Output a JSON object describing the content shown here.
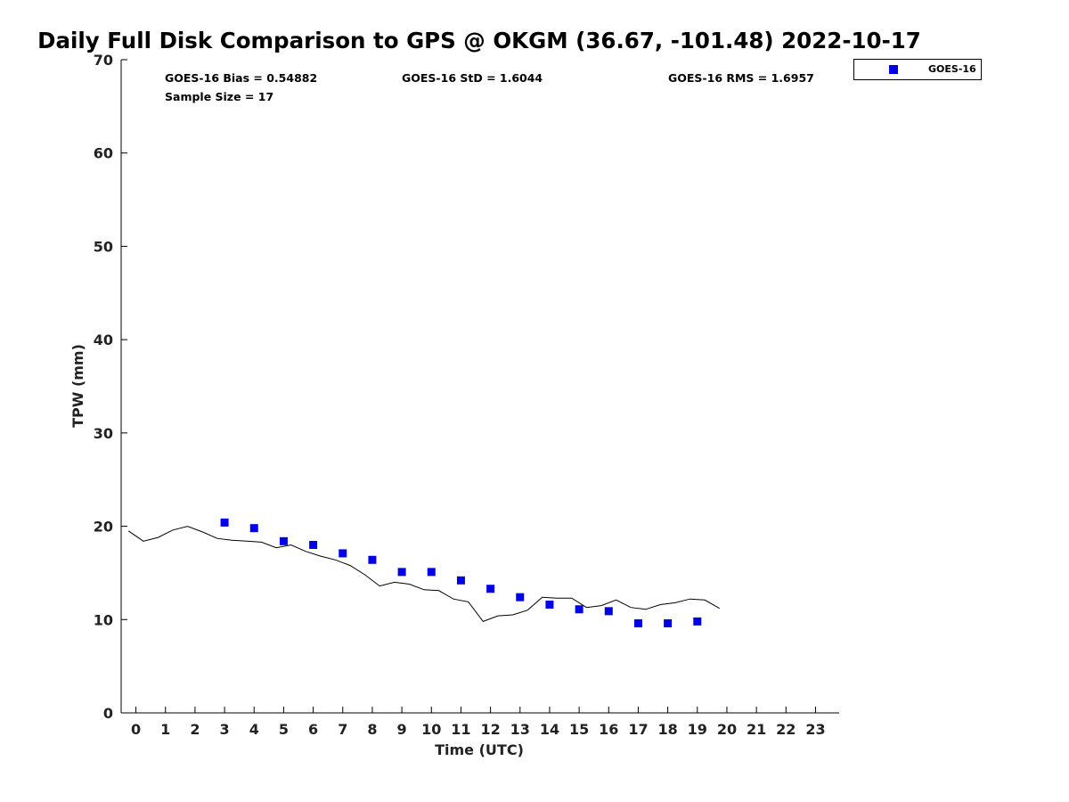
{
  "chart_data": {
    "type": "scatter",
    "title": "Daily Full Disk Comparison to GPS @ OKGM (36.67, -101.48) 2022-10-17",
    "xlabel": "Time (UTC)",
    "ylabel": "TPW (mm)",
    "xlim": [
      -0.5,
      23.8
    ],
    "ylim": [
      0,
      70
    ],
    "x_ticks": [
      "0",
      "1",
      "2",
      "3",
      "4",
      "5",
      "6",
      "7",
      "8",
      "9",
      "10",
      "11",
      "12",
      "13",
      "14",
      "15",
      "16",
      "17",
      "18",
      "19",
      "20",
      "21",
      "22",
      "23"
    ],
    "y_ticks": [
      "0",
      "10",
      "20",
      "30",
      "40",
      "50",
      "60",
      "70"
    ],
    "grid": false,
    "legend_position": "outside-top-right",
    "stats": {
      "bias": "GOES-16 Bias = 0.54882",
      "std": "GOES-16 StD = 1.6044",
      "rms": "GOES-16 RMS = 1.6957",
      "sample_size": "Sample Size = 17"
    },
    "series": [
      {
        "name": "GOES-16",
        "kind": "scatter",
        "color": "#0000e6",
        "marker": "square",
        "x": [
          3,
          4,
          5,
          6,
          7,
          8,
          9,
          10,
          11,
          12,
          13,
          14,
          15,
          16,
          17,
          18,
          19
        ],
        "y": [
          20.4,
          19.8,
          18.4,
          18.0,
          17.1,
          16.4,
          15.1,
          15.1,
          14.2,
          13.3,
          12.4,
          11.6,
          11.1,
          10.9,
          9.6,
          9.6,
          9.8
        ]
      },
      {
        "kind": "line",
        "color": "#000000",
        "x": [
          -0.25,
          0.25,
          0.75,
          1.25,
          1.75,
          2.25,
          2.75,
          3.25,
          3.75,
          4.25,
          4.75,
          5.25,
          5.75,
          6.25,
          6.75,
          7.25,
          7.75,
          8.25,
          8.75,
          9.25,
          9.75,
          10.25,
          10.75,
          11.25,
          11.75,
          12.25,
          12.75,
          13.25,
          13.75,
          14.25,
          14.75,
          15.25,
          15.75,
          16.25,
          16.75,
          17.25,
          17.75,
          18.25,
          18.75,
          19.25,
          19.75
        ],
        "y": [
          19.5,
          18.4,
          18.8,
          19.6,
          20.0,
          19.4,
          18.7,
          18.5,
          18.4,
          18.3,
          17.7,
          18.0,
          17.3,
          16.8,
          16.4,
          15.8,
          14.8,
          13.6,
          14.0,
          13.8,
          13.2,
          13.1,
          12.2,
          11.9,
          9.8,
          10.4,
          10.5,
          11.0,
          12.4,
          12.3,
          12.3,
          11.3,
          11.5,
          12.1,
          11.3,
          11.1,
          11.6,
          11.8,
          12.2,
          12.1,
          11.2
        ]
      }
    ]
  }
}
